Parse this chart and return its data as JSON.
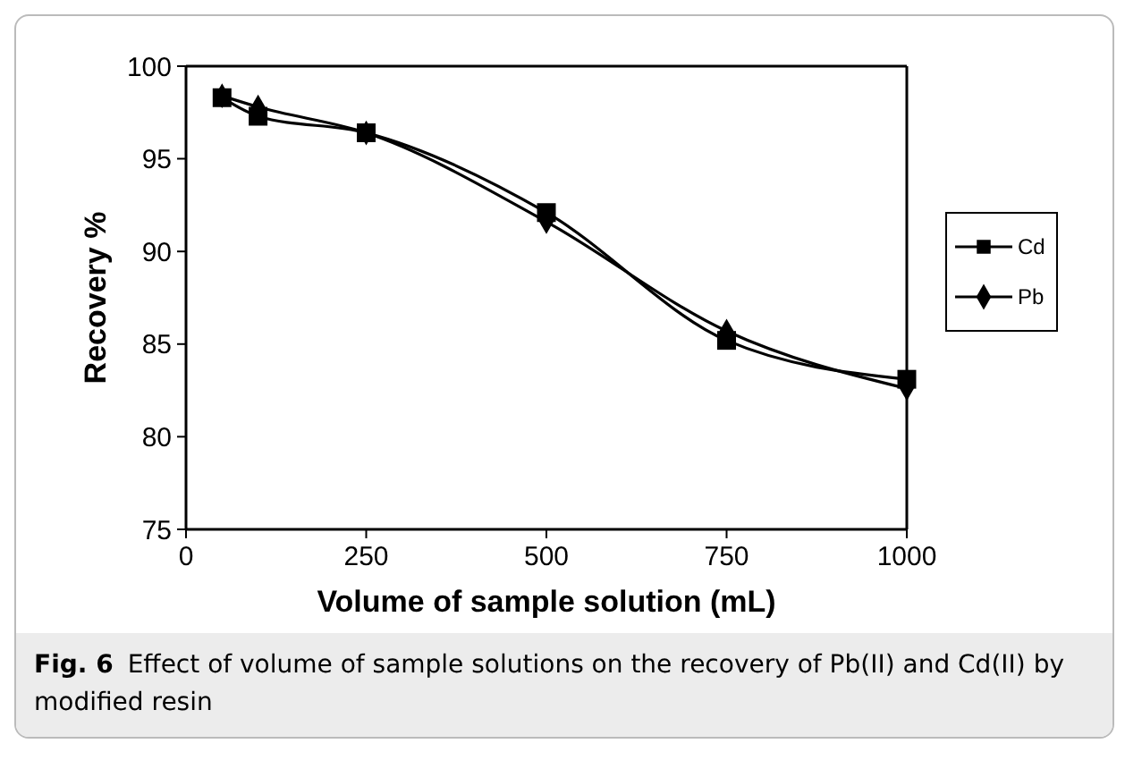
{
  "chart_data": {
    "type": "line",
    "xlabel": "Volume of sample solution (mL)",
    "ylabel": "Recovery %",
    "x": [
      50,
      100,
      250,
      500,
      750,
      1000
    ],
    "series": [
      {
        "name": "Cd",
        "color": "#000000",
        "marker": "square",
        "values": [
          98.3,
          97.3,
          96.4,
          92.1,
          85.2,
          83.1
        ]
      },
      {
        "name": "Pb",
        "color": "#000000",
        "marker": "diamond",
        "values": [
          98.4,
          97.8,
          96.4,
          91.6,
          85.7,
          82.6
        ]
      }
    ],
    "xlim": [
      0,
      1000
    ],
    "xticks": [
      0,
      250,
      500,
      750,
      1000
    ],
    "ylim": [
      75,
      100
    ],
    "yticks": [
      75,
      80,
      85,
      90,
      95,
      100
    ],
    "grid": false,
    "legend": "right",
    "line_style": "solid",
    "annotations": [
      "Fig. 6",
      "Effect of volume of sample solutions on the recovery of Pb(II) and Cd(II) by modified resin"
    ]
  }
}
